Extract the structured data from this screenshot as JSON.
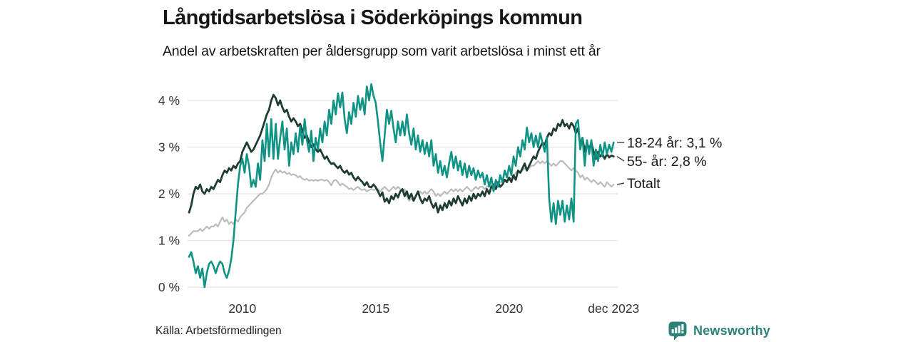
{
  "footer": {
    "source": "Källa: Arbetsförmedlingen",
    "brand_name": "Newsworthy",
    "brand_color": "#2c8276",
    "brand_icon": "bar-chart-speech-bubble-icon"
  },
  "chart_data": {
    "type": "line",
    "title": "Långtidsarbetslösa i Söderköpings kommun",
    "subtitle": "Andel av arbetskraften per åldersgrupp som varit arbetslösa i minst ett år",
    "x_start_year": 2008,
    "x_interval_months": 1,
    "x_end_label": "dec 2023",
    "ylim": [
      0,
      4.5
    ],
    "grid": "horizontal",
    "legend_position": "right-of-line-ends",
    "colors": {
      "grid": "#e3e3e3",
      "axis_text": "#333333",
      "legend_text": "#1a1a1a",
      "connector": "#444444"
    },
    "yticks": [
      {
        "value": 0,
        "label": "0 %"
      },
      {
        "value": 1,
        "label": "1 %"
      },
      {
        "value": 2,
        "label": "2 %"
      },
      {
        "value": 3,
        "label": "3 %"
      },
      {
        "value": 4,
        "label": "4 %"
      }
    ],
    "xticks": [
      {
        "year": 2010,
        "label": "2010"
      },
      {
        "year": 2015,
        "label": "2015"
      },
      {
        "year": 2020,
        "label": "2020"
      },
      {
        "year": 2023.917,
        "label": "dec 2023"
      }
    ],
    "series": [
      {
        "id": "18-24-ar",
        "name": "18-24 år",
        "legend_label": "18-24 år: 3,1 %",
        "end_value": 3.1,
        "color": "#0e9384",
        "values": [
          0.65,
          0.75,
          0.55,
          0.3,
          0.45,
          0.2,
          0.4,
          0.0,
          0.3,
          0.5,
          0.55,
          0.45,
          0.3,
          0.45,
          0.55,
          0.5,
          0.3,
          0.2,
          0.35,
          0.6,
          1.0,
          1.6,
          2.2,
          2.6,
          2.75,
          2.45,
          2.85,
          2.6,
          2.15,
          2.3,
          2.15,
          2.65,
          2.3,
          3.15,
          2.7,
          3.5,
          2.8,
          3.6,
          2.75,
          3.5,
          2.75,
          3.2,
          3.55,
          2.95,
          3.4,
          2.6,
          3.1,
          2.85,
          3.3,
          2.9,
          3.45,
          3.05,
          3.6,
          3.15,
          2.9,
          3.35,
          2.7,
          3.2,
          2.95,
          3.4,
          3.1,
          3.55,
          3.25,
          3.8,
          3.5,
          4.0,
          3.7,
          4.15,
          3.85,
          4.17,
          3.6,
          3.3,
          3.75,
          3.5,
          3.95,
          3.65,
          4.1,
          3.8,
          4.05,
          3.7,
          4.3,
          4.0,
          4.35,
          4.1,
          3.95,
          3.55,
          3.1,
          2.7,
          3.25,
          3.8,
          3.5,
          3.78,
          3.4,
          3.1,
          3.55,
          3.25,
          3.55,
          3.25,
          3.7,
          3.3,
          3.05,
          3.4,
          2.95,
          3.25,
          2.9,
          3.15,
          2.85,
          3.1,
          2.8,
          3.15,
          2.6,
          2.85,
          2.45,
          2.7,
          2.4,
          2.6,
          2.35,
          2.65,
          2.9,
          2.55,
          2.8,
          2.5,
          2.7,
          2.4,
          2.65,
          2.35,
          2.6,
          2.4,
          2.55,
          2.3,
          2.5,
          2.35,
          2.45,
          2.2,
          2.4,
          2.15,
          2.35,
          2.05,
          2.3,
          2.15,
          2.4,
          2.25,
          2.5,
          2.35,
          2.6,
          2.4,
          2.8,
          2.6,
          3.0,
          2.8,
          3.15,
          2.95,
          3.42,
          3.1,
          3.3,
          3.0,
          3.25,
          3.0,
          3.3,
          3.1,
          2.9,
          3.2,
          1.9,
          1.4,
          1.8,
          1.35,
          1.85,
          1.55,
          1.85,
          1.4,
          1.75,
          1.45,
          1.9,
          1.4,
          3.5,
          3.58,
          2.95,
          3.2,
          2.6,
          3.15,
          2.85,
          3.15,
          2.6,
          2.95,
          2.7,
          3.05,
          2.8,
          3.1,
          2.85,
          3.05,
          2.9,
          3.1
        ]
      },
      {
        "id": "55-ar",
        "name": "55- år",
        "legend_label": "55- år: 2,8 %",
        "end_value": 2.8,
        "color": "#1f3c32",
        "values": [
          1.6,
          1.75,
          2.0,
          2.15,
          2.1,
          2.2,
          2.05,
          2.0,
          2.1,
          2.05,
          2.15,
          2.1,
          2.2,
          2.3,
          2.25,
          2.4,
          2.5,
          2.45,
          2.55,
          2.5,
          2.6,
          2.55,
          2.65,
          2.7,
          2.9,
          3.0,
          3.1,
          3.0,
          2.9,
          2.95,
          3.05,
          3.15,
          3.25,
          3.4,
          3.55,
          3.7,
          3.8,
          4.0,
          4.12,
          4.05,
          3.9,
          4.0,
          3.85,
          3.75,
          3.8,
          3.65,
          3.55,
          3.62,
          3.55,
          3.45,
          3.5,
          3.35,
          3.2,
          3.25,
          3.1,
          3.0,
          3.06,
          2.95,
          2.9,
          2.95,
          2.85,
          2.75,
          2.8,
          2.7,
          2.64,
          2.66,
          2.6,
          2.55,
          2.6,
          2.5,
          2.45,
          2.5,
          2.41,
          2.45,
          2.35,
          2.29,
          2.36,
          2.3,
          2.25,
          2.18,
          2.25,
          2.15,
          2.14,
          2.2,
          2.14,
          2.05,
          1.95,
          2.03,
          1.83,
          1.9,
          1.8,
          1.95,
          1.88,
          2.0,
          1.92,
          2.05,
          2.1,
          1.95,
          2.05,
          1.9,
          2.0,
          1.85,
          1.95,
          2.05,
          1.9,
          1.8,
          1.9,
          1.85,
          1.95,
          1.8,
          1.7,
          1.8,
          1.6,
          1.75,
          1.65,
          1.8,
          1.7,
          1.85,
          1.75,
          1.9,
          1.8,
          1.95,
          1.85,
          1.75,
          1.9,
          1.8,
          1.95,
          1.85,
          2.0,
          1.9,
          2.0,
          1.95,
          2.05,
          1.95,
          2.1,
          2.0,
          2.15,
          2.2,
          2.1,
          2.25,
          2.15,
          2.2,
          2.3,
          2.25,
          2.35,
          2.25,
          2.4,
          2.3,
          2.5,
          2.45,
          2.55,
          2.65,
          2.5,
          2.6,
          2.7,
          2.8,
          2.75,
          2.9,
          3.0,
          3.1,
          3.05,
          3.2,
          3.3,
          3.25,
          3.4,
          3.35,
          3.5,
          3.45,
          3.58,
          3.45,
          3.5,
          3.4,
          3.52,
          3.45,
          3.3,
          3.4,
          3.05,
          3.2,
          2.9,
          3.1,
          2.95,
          3.1,
          2.9,
          2.75,
          2.9,
          2.8,
          2.85,
          2.75,
          2.85,
          2.78,
          2.82,
          2.8
        ]
      },
      {
        "id": "totalt",
        "name": "Totalt",
        "legend_label": "Totalt",
        "end_value": 2.2,
        "color": "#bcbcbc",
        "values": [
          1.1,
          1.15,
          1.2,
          1.2,
          1.2,
          1.25,
          1.2,
          1.25,
          1.3,
          1.25,
          1.3,
          1.3,
          1.35,
          1.3,
          1.4,
          1.5,
          1.4,
          1.45,
          1.35,
          1.4,
          1.35,
          1.45,
          1.4,
          1.5,
          1.55,
          1.6,
          1.7,
          1.75,
          1.8,
          1.85,
          1.9,
          1.95,
          2.0,
          2.0,
          2.05,
          2.1,
          2.2,
          2.35,
          2.45,
          2.52,
          2.45,
          2.5,
          2.45,
          2.48,
          2.42,
          2.45,
          2.4,
          2.42,
          2.4,
          2.35,
          2.38,
          2.32,
          2.3,
          2.32,
          2.28,
          2.3,
          2.28,
          2.3,
          2.28,
          2.3,
          2.3,
          2.28,
          2.3,
          2.25,
          2.18,
          2.28,
          2.3,
          2.25,
          2.18,
          2.22,
          2.18,
          2.15,
          2.1,
          2.12,
          2.08,
          2.12,
          2.15,
          2.1,
          2.08,
          2.1,
          2.05,
          2.08,
          2.1,
          2.08,
          2.1,
          2.1,
          2.05,
          2.1,
          2.15,
          2.1,
          2.05,
          2.1,
          2.15,
          2.1,
          2.15,
          2.1,
          2.05,
          2.1,
          1.95,
          1.85,
          1.9,
          1.85,
          1.95,
          2.0,
          2.05,
          2.0,
          2.05,
          2.0,
          2.05,
          2.1,
          2.05,
          1.95,
          2.0,
          1.95,
          2.0,
          2.05,
          2.0,
          2.05,
          2.1,
          2.05,
          2.1,
          2.05,
          2.1,
          2.05,
          2.1,
          2.15,
          2.1,
          2.05,
          2.1,
          2.15,
          2.1,
          2.15,
          2.15,
          2.1,
          2.15,
          2.2,
          2.15,
          2.2,
          2.25,
          2.2,
          2.25,
          2.25,
          2.3,
          2.3,
          2.3,
          2.35,
          2.4,
          2.45,
          2.5,
          2.45,
          2.5,
          2.55,
          2.5,
          2.55,
          2.6,
          2.6,
          2.65,
          2.7,
          2.65,
          2.7,
          2.65,
          2.7,
          2.65,
          2.6,
          2.65,
          2.6,
          2.65,
          2.7,
          2.7,
          2.65,
          2.6,
          2.55,
          2.5,
          2.55,
          2.5,
          2.45,
          2.35,
          2.4,
          2.3,
          2.35,
          2.3,
          2.25,
          2.3,
          2.25,
          2.2,
          2.25,
          2.2,
          2.15,
          2.25,
          2.2,
          2.15,
          2.2
        ]
      }
    ]
  }
}
